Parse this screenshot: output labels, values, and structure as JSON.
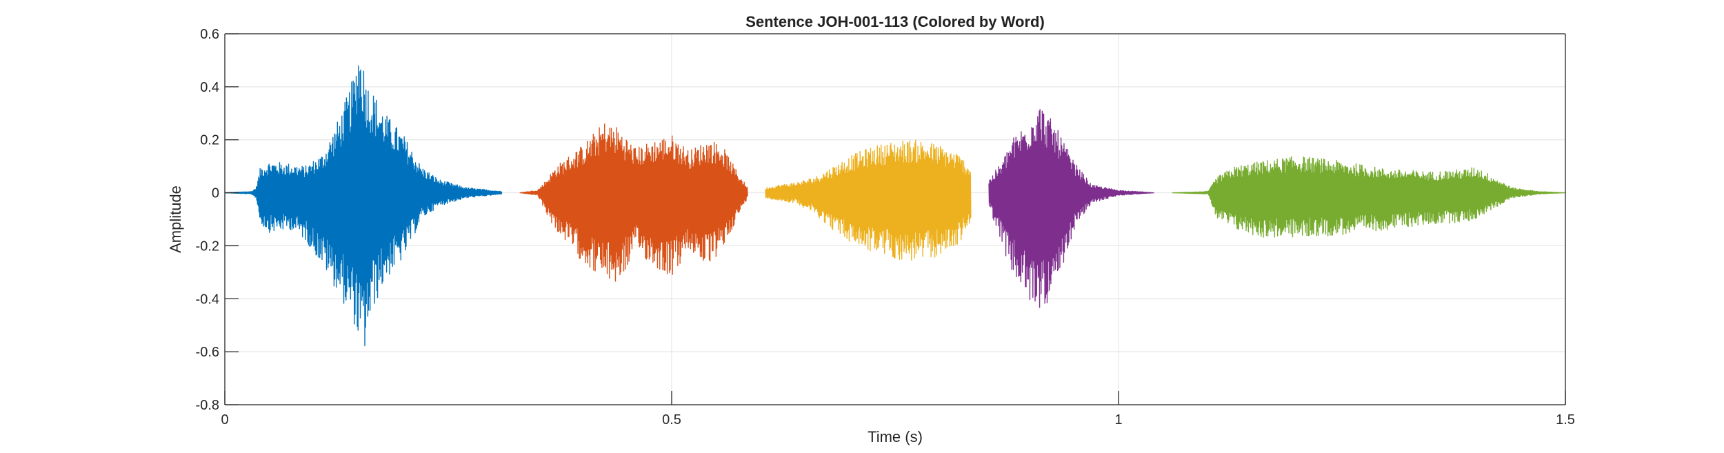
{
  "chart_data": {
    "type": "line",
    "title": "Sentence JOH-001-113 (Colored by Word)",
    "xlabel": "Time (s)",
    "ylabel": "Amplitude",
    "xlim": [
      0,
      1.5
    ],
    "ylim": [
      -0.8,
      0.6
    ],
    "xticks": [
      0,
      0.5,
      1,
      1.5
    ],
    "xtick_labels": [
      "0",
      "0.5",
      "1",
      "1.5"
    ],
    "yticks": [
      -0.8,
      -0.6,
      -0.4,
      -0.2,
      0,
      0.2,
      0.4,
      0.6
    ],
    "ytick_labels": [
      "-0.8",
      "-0.6",
      "-0.4",
      "-0.2",
      "0",
      "0.2",
      "0.4",
      "0.6"
    ],
    "grid": true,
    "series": [
      {
        "color": "#0072BD",
        "t_start": 0.0,
        "t_end": 0.31,
        "envelope": [
          [
            0.0,
            0.0
          ],
          [
            0.03,
            0.005
          ],
          [
            0.035,
            0.02
          ],
          [
            0.04,
            0.1
          ],
          [
            0.05,
            0.12
          ],
          [
            0.075,
            0.11
          ],
          [
            0.09,
            0.1
          ],
          [
            0.11,
            0.15
          ],
          [
            0.13,
            0.3
          ],
          [
            0.145,
            0.45
          ],
          [
            0.15,
            0.58
          ],
          [
            0.16,
            0.42
          ],
          [
            0.18,
            0.3
          ],
          [
            0.2,
            0.22
          ],
          [
            0.22,
            0.1
          ],
          [
            0.24,
            0.05
          ],
          [
            0.27,
            0.02
          ],
          [
            0.31,
            0.005
          ]
        ],
        "envelope_neg": [
          [
            0.0,
            0.0
          ],
          [
            0.03,
            -0.005
          ],
          [
            0.035,
            -0.02
          ],
          [
            0.04,
            -0.12
          ],
          [
            0.05,
            -0.15
          ],
          [
            0.075,
            -0.14
          ],
          [
            0.09,
            -0.18
          ],
          [
            0.11,
            -0.28
          ],
          [
            0.13,
            -0.4
          ],
          [
            0.145,
            -0.5
          ],
          [
            0.155,
            -0.63
          ],
          [
            0.165,
            -0.45
          ],
          [
            0.18,
            -0.33
          ],
          [
            0.2,
            -0.25
          ],
          [
            0.22,
            -0.1
          ],
          [
            0.24,
            -0.05
          ],
          [
            0.27,
            -0.02
          ],
          [
            0.31,
            -0.005
          ]
        ]
      },
      {
        "color": "#D95319",
        "t_start": 0.33,
        "t_end": 0.585,
        "envelope": [
          [
            0.33,
            0.0
          ],
          [
            0.35,
            0.01
          ],
          [
            0.36,
            0.05
          ],
          [
            0.37,
            0.1
          ],
          [
            0.4,
            0.18
          ],
          [
            0.425,
            0.27
          ],
          [
            0.44,
            0.25
          ],
          [
            0.46,
            0.17
          ],
          [
            0.48,
            0.2
          ],
          [
            0.5,
            0.22
          ],
          [
            0.52,
            0.16
          ],
          [
            0.54,
            0.2
          ],
          [
            0.555,
            0.19
          ],
          [
            0.57,
            0.1
          ],
          [
            0.585,
            0.02
          ]
        ],
        "envelope_neg": [
          [
            0.33,
            0.0
          ],
          [
            0.35,
            -0.01
          ],
          [
            0.36,
            -0.08
          ],
          [
            0.37,
            -0.14
          ],
          [
            0.4,
            -0.26
          ],
          [
            0.42,
            -0.32
          ],
          [
            0.44,
            -0.35
          ],
          [
            0.46,
            -0.22
          ],
          [
            0.48,
            -0.28
          ],
          [
            0.5,
            -0.32
          ],
          [
            0.52,
            -0.22
          ],
          [
            0.54,
            -0.28
          ],
          [
            0.555,
            -0.23
          ],
          [
            0.57,
            -0.12
          ],
          [
            0.585,
            -0.02
          ]
        ]
      },
      {
        "color": "#EDB120",
        "t_start": 0.605,
        "t_end": 0.835,
        "envelope": [
          [
            0.605,
            0.02
          ],
          [
            0.62,
            0.03
          ],
          [
            0.64,
            0.04
          ],
          [
            0.66,
            0.06
          ],
          [
            0.68,
            0.1
          ],
          [
            0.7,
            0.14
          ],
          [
            0.72,
            0.17
          ],
          [
            0.74,
            0.19
          ],
          [
            0.76,
            0.2
          ],
          [
            0.78,
            0.2
          ],
          [
            0.8,
            0.18
          ],
          [
            0.82,
            0.15
          ],
          [
            0.835,
            0.1
          ]
        ],
        "envelope_neg": [
          [
            0.605,
            -0.02
          ],
          [
            0.62,
            -0.03
          ],
          [
            0.64,
            -0.04
          ],
          [
            0.66,
            -0.08
          ],
          [
            0.68,
            -0.14
          ],
          [
            0.7,
            -0.19
          ],
          [
            0.72,
            -0.22
          ],
          [
            0.74,
            -0.24
          ],
          [
            0.76,
            -0.26
          ],
          [
            0.78,
            -0.26
          ],
          [
            0.8,
            -0.24
          ],
          [
            0.82,
            -0.2
          ],
          [
            0.835,
            -0.12
          ]
        ]
      },
      {
        "color": "#7E2F8E",
        "t_start": 0.855,
        "t_end": 1.04,
        "envelope": [
          [
            0.855,
            0.05
          ],
          [
            0.87,
            0.12
          ],
          [
            0.88,
            0.2
          ],
          [
            0.9,
            0.28
          ],
          [
            0.91,
            0.35
          ],
          [
            0.93,
            0.25
          ],
          [
            0.95,
            0.12
          ],
          [
            0.97,
            0.03
          ],
          [
            1.0,
            0.01
          ],
          [
            1.04,
            0.0
          ]
        ],
        "envelope_neg": [
          [
            0.855,
            -0.05
          ],
          [
            0.87,
            -0.2
          ],
          [
            0.88,
            -0.3
          ],
          [
            0.9,
            -0.42
          ],
          [
            0.91,
            -0.44
          ],
          [
            0.93,
            -0.4
          ],
          [
            0.95,
            -0.14
          ],
          [
            0.97,
            -0.04
          ],
          [
            1.0,
            -0.01
          ],
          [
            1.04,
            0.0
          ]
        ]
      },
      {
        "color": "#77AC30",
        "t_start": 1.06,
        "t_end": 1.5,
        "envelope": [
          [
            1.06,
            0.0
          ],
          [
            1.1,
            0.005
          ],
          [
            1.11,
            0.06
          ],
          [
            1.13,
            0.1
          ],
          [
            1.16,
            0.12
          ],
          [
            1.2,
            0.14
          ],
          [
            1.25,
            0.12
          ],
          [
            1.3,
            0.09
          ],
          [
            1.35,
            0.08
          ],
          [
            1.39,
            0.09
          ],
          [
            1.4,
            0.1
          ],
          [
            1.42,
            0.06
          ],
          [
            1.44,
            0.02
          ],
          [
            1.47,
            0.005
          ],
          [
            1.5,
            0.0
          ]
        ],
        "envelope_neg": [
          [
            1.06,
            0.0
          ],
          [
            1.1,
            -0.005
          ],
          [
            1.11,
            -0.1
          ],
          [
            1.13,
            -0.14
          ],
          [
            1.16,
            -0.17
          ],
          [
            1.2,
            -0.17
          ],
          [
            1.25,
            -0.16
          ],
          [
            1.3,
            -0.14
          ],
          [
            1.35,
            -0.12
          ],
          [
            1.39,
            -0.11
          ],
          [
            1.4,
            -0.1
          ],
          [
            1.42,
            -0.06
          ],
          [
            1.44,
            -0.02
          ],
          [
            1.47,
            -0.005
          ],
          [
            1.5,
            0.0
          ]
        ]
      }
    ]
  }
}
